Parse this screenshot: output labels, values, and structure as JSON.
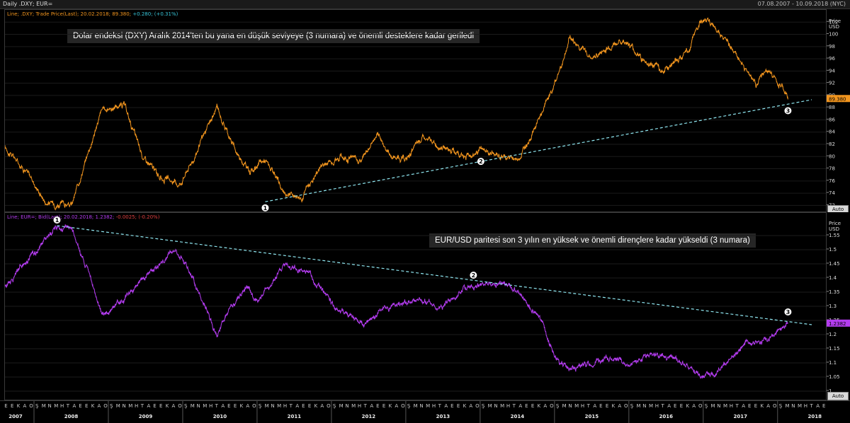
{
  "header": {
    "title": "Daily .DXY; EUR=",
    "range": "07.08.2007 - 10.09.2018 (NYC)"
  },
  "top_panel": {
    "legend_prefix": "Line; .DXY; Trade Price(Last); 20.02.2018; 89.380;",
    "legend_change": "+0.280; (+0.31%)",
    "annotation": "Dolar endeksi (DXY) Aralık 2014'ten bu yana en düşük seviyeye (3 numara) ve önemli desteklere kadar geriledi",
    "price_title": "Price",
    "price_unit": "USD",
    "last_label": "89.380",
    "auto": "Auto"
  },
  "bottom_panel": {
    "legend_prefix": "Line; EUR=; Bid(Last); 20.02.2018; 1.2382;",
    "legend_change": "-0.0025; (-0.20%)",
    "annotation": "EUR/USD paritesi son 3 yılın en yüksek ve önemli dirençlere kadar yükseldi (3 numara)",
    "price_title": "Price",
    "price_unit": "USD",
    "last_label": "1.2382",
    "auto": "Auto"
  },
  "colors": {
    "dxy": "#f2951e",
    "eur": "#b43cf0",
    "trend": "#8fe6f0",
    "change_up": "#38c5d8",
    "change_down": "#e04040"
  },
  "chart_data": [
    {
      "type": "line",
      "title": "Daily .DXY",
      "ylabel": "Price USD",
      "ylim": [
        71,
        104
      ],
      "yticks": [
        72,
        74,
        76,
        78,
        80,
        82,
        84,
        86,
        88,
        90,
        92,
        94,
        96,
        98,
        100,
        102
      ],
      "series": [
        {
          "name": ".DXY",
          "x": [
            2007.6,
            2007.9,
            2008.15,
            2008.5,
            2008.7,
            2008.9,
            2009.2,
            2009.45,
            2009.7,
            2009.95,
            2010.15,
            2010.45,
            2010.7,
            2010.9,
            2011.1,
            2011.35,
            2011.6,
            2011.85,
            2012.1,
            2012.4,
            2012.6,
            2012.8,
            2013.0,
            2013.2,
            2013.5,
            2013.8,
            2014.0,
            2014.3,
            2014.5,
            2014.8,
            2015.0,
            2015.2,
            2015.5,
            2015.8,
            2015.95,
            2016.2,
            2016.45,
            2016.8,
            2016.95,
            2017.2,
            2017.5,
            2017.7,
            2017.85,
            2018.05,
            2018.13
          ],
          "y": [
            81.5,
            77.5,
            72.5,
            72.0,
            80.0,
            87.5,
            88.5,
            80.0,
            76.5,
            75.5,
            80.0,
            88.0,
            81.0,
            77.5,
            79.5,
            74.0,
            73.5,
            78.5,
            80.0,
            79.5,
            83.5,
            80.0,
            79.5,
            83.0,
            81.5,
            80.0,
            81.0,
            80.0,
            79.5,
            86.5,
            92.0,
            99.5,
            96.0,
            98.5,
            99.0,
            95.5,
            94.0,
            97.5,
            102.5,
            101.0,
            95.5,
            92.0,
            94.0,
            91.5,
            89.38
          ]
        }
      ],
      "trendline": {
        "from": [
          2011.1,
          72.6
        ],
        "to": [
          2018.45,
          89.3
        ]
      },
      "markers": [
        {
          "label": "1",
          "x": 2011.1,
          "y": 71.6
        },
        {
          "label": "2",
          "x": 2014.0,
          "y": 79.2
        },
        {
          "label": "3",
          "x": 2018.13,
          "y": 87.5
        }
      ]
    },
    {
      "type": "line",
      "title": "Daily EUR=",
      "ylabel": "Price USD",
      "ylim": [
        0.97,
        1.63
      ],
      "yticks": [
        1,
        1.05,
        1.1,
        1.15,
        1.2,
        1.25,
        1.3,
        1.35,
        1.4,
        1.45,
        1.5,
        1.55
      ],
      "series": [
        {
          "name": "EUR=",
          "x": [
            2007.6,
            2007.9,
            2008.3,
            2008.5,
            2008.75,
            2008.9,
            2009.2,
            2009.45,
            2009.9,
            2010.2,
            2010.45,
            2010.6,
            2010.85,
            2011.0,
            2011.35,
            2011.7,
            2011.9,
            2012.1,
            2012.45,
            2012.7,
            2012.9,
            2013.2,
            2013.5,
            2013.8,
            2014.0,
            2014.3,
            2014.5,
            2014.8,
            2015.0,
            2015.2,
            2015.5,
            2015.8,
            2016.0,
            2016.3,
            2016.6,
            2016.95,
            2017.1,
            2017.3,
            2017.55,
            2017.8,
            2017.95,
            2018.13
          ],
          "y": [
            1.37,
            1.46,
            1.58,
            1.57,
            1.4,
            1.27,
            1.32,
            1.4,
            1.5,
            1.36,
            1.2,
            1.28,
            1.37,
            1.31,
            1.45,
            1.42,
            1.34,
            1.29,
            1.23,
            1.3,
            1.31,
            1.32,
            1.3,
            1.36,
            1.38,
            1.38,
            1.35,
            1.25,
            1.12,
            1.08,
            1.1,
            1.12,
            1.09,
            1.13,
            1.12,
            1.05,
            1.06,
            1.09,
            1.17,
            1.18,
            1.2,
            1.238
          ]
        }
      ],
      "trendline": {
        "from": [
          2008.3,
          1.585
        ],
        "to": [
          2018.45,
          1.235
        ]
      },
      "markers": [
        {
          "label": "1",
          "x": 2008.3,
          "y": 1.605
        },
        {
          "label": "2",
          "x": 2013.9,
          "y": 1.41
        },
        {
          "label": "3",
          "x": 2018.13,
          "y": 1.28
        }
      ]
    }
  ],
  "x_axis": {
    "month_letters": [
      "E",
      "E",
      "K",
      "A",
      "O",
      "Ş",
      "M",
      "N",
      "M",
      "H",
      "T",
      "A"
    ],
    "years": [
      "2007",
      "2008",
      "2009",
      "2010",
      "2011",
      "2012",
      "2013",
      "2014",
      "2015",
      "2016",
      "2017",
      "2018"
    ]
  }
}
